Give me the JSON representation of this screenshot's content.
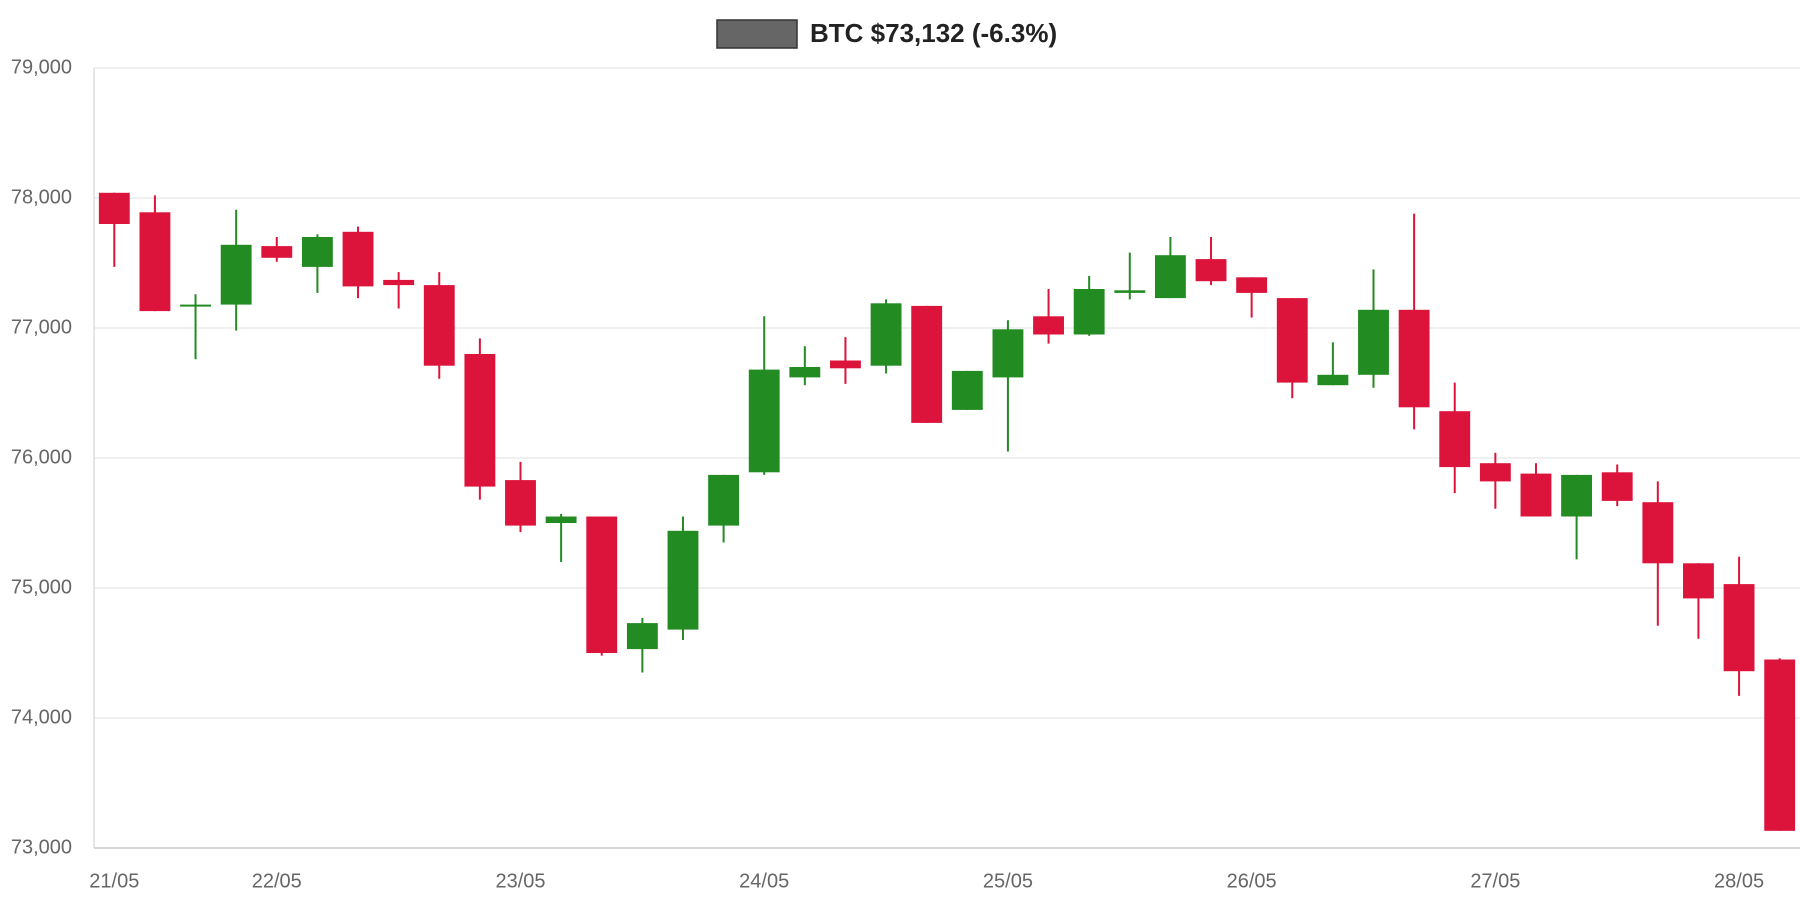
{
  "chart_data": {
    "type": "candlestick",
    "categories": [
      "21/05",
      null,
      null,
      null,
      "22/05",
      null,
      null,
      null,
      null,
      null,
      "23/05",
      null,
      null,
      null,
      null,
      null,
      "24/05",
      null,
      null,
      null,
      null,
      null,
      "25/05",
      null,
      null,
      null,
      null,
      null,
      "26/05",
      null,
      null,
      null,
      null,
      null,
      "27/05",
      null,
      null,
      null,
      null,
      null,
      "28/05",
      null
    ],
    "series": [
      {
        "name": "BTC $73,132 (-6.3%)",
        "color": "#666666",
        "up_color": "#228b22",
        "down_color": "#dc143c",
        "open": [
          78040,
          77890,
          77170,
          77180,
          77630,
          77470,
          77740,
          77370,
          77330,
          76800,
          75830,
          75500,
          75550,
          74530,
          74680,
          75480,
          75890,
          76620,
          76750,
          76710,
          77170,
          76370,
          76620,
          77090,
          76950,
          77270,
          77230,
          77530,
          77390,
          77230,
          76560,
          76640,
          77140,
          76360,
          75960,
          75880,
          75550,
          75890,
          75660,
          75190,
          75030,
          74450
        ],
        "high": [
          78040,
          78020,
          77260,
          77910,
          77700,
          77720,
          77780,
          77430,
          77430,
          76920,
          75970,
          75570,
          75550,
          74770,
          75550,
          75870,
          77090,
          76860,
          76930,
          77220,
          77170,
          76670,
          77060,
          77300,
          77400,
          77580,
          77700,
          77700,
          77390,
          77230,
          76890,
          77450,
          77880,
          76580,
          76040,
          75960,
          75870,
          75950,
          75820,
          75190,
          75240,
          74460
        ],
        "low": [
          77470,
          77130,
          76760,
          76980,
          77510,
          77270,
          77230,
          77150,
          76610,
          75680,
          75430,
          75200,
          74480,
          74350,
          74600,
          75350,
          75870,
          76560,
          76570,
          76650,
          76270,
          76370,
          76050,
          76880,
          76940,
          77220,
          77230,
          77330,
          77080,
          76460,
          76560,
          76540,
          76220,
          75730,
          75610,
          75550,
          75220,
          75630,
          74710,
          74610,
          74170,
          73132
        ],
        "close": [
          77800,
          77130,
          77180,
          77640,
          77540,
          77700,
          77320,
          77330,
          76710,
          75780,
          75480,
          75550,
          74500,
          74730,
          75440,
          75870,
          76680,
          76700,
          76690,
          77190,
          76270,
          76670,
          76990,
          76950,
          77300,
          77290,
          77560,
          77360,
          77270,
          76580,
          76640,
          77140,
          76390,
          75930,
          75820,
          75550,
          75870,
          75670,
          75190,
          74920,
          74360,
          73132
        ]
      }
    ],
    "ylim": [
      73000,
      79000
    ],
    "yticks": [
      {
        "value": 73000,
        "label": "73,000"
      },
      {
        "value": 74000,
        "label": "74,000"
      },
      {
        "value": 75000,
        "label": "75,000"
      },
      {
        "value": 76000,
        "label": "76,000"
      },
      {
        "value": 77000,
        "label": "77,000"
      },
      {
        "value": 78000,
        "label": "78,000"
      },
      {
        "value": 79000,
        "label": "79,000"
      }
    ],
    "grid": true,
    "legend": "top"
  }
}
